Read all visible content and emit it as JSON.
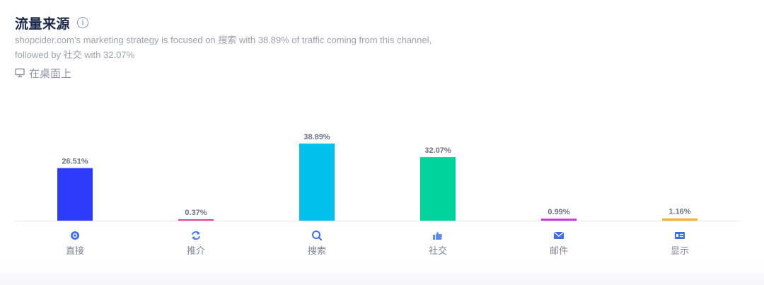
{
  "header": {
    "title": "流量来源",
    "info_icon": "info-icon",
    "description_line1": "shopcider.com’s marketing strategy is focused on 搜索 with 38.89% of traffic coming from this channel,",
    "description_line2": "followed by 社交 with 32.07%",
    "device_label": "在桌面上",
    "device_icon": "desktop-monitor-icon"
  },
  "chart_data": {
    "type": "bar",
    "categories": [
      "直接",
      "推介",
      "搜索",
      "社交",
      "邮件",
      "显示"
    ],
    "values": [
      26.51,
      0.37,
      38.89,
      32.07,
      0.99,
      1.16
    ],
    "value_labels": [
      "26.51%",
      "0.37%",
      "38.89%",
      "32.07%",
      "0.99%",
      "1.16%"
    ],
    "colors": [
      "#2f3bfb",
      "#e8429a",
      "#00c0ec",
      "#00d39b",
      "#cb2fe9",
      "#f3b62e"
    ],
    "icons": [
      "direct-target-icon",
      "referral-arrows-icon",
      "search-icon",
      "thumbs-up-icon",
      "mail-icon",
      "display-ad-icon"
    ],
    "ylim": [
      0,
      38.89
    ],
    "grid": false,
    "legend": "none"
  }
}
